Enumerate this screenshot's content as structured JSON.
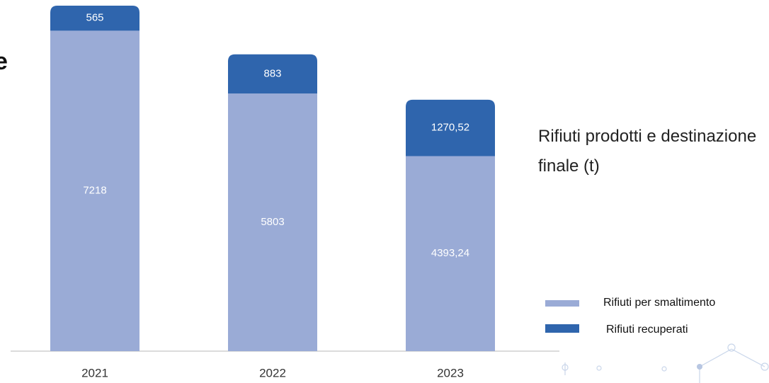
{
  "left_fragment": "e",
  "chart_data": {
    "type": "stacked_bar",
    "title": "Rifiuti prodotti e destinazione finale (t)",
    "categories": [
      "2021",
      "2022",
      "2023"
    ],
    "series": [
      {
        "name": "Rifiuti per smaltimento",
        "color": "#9aabd6",
        "values": [
          7218,
          5803,
          4393.24
        ],
        "value_labels": [
          "7218",
          "5803",
          "4393,24"
        ]
      },
      {
        "name": "Rifiuti recuperati",
        "color": "#2f65ad",
        "values": [
          565,
          883,
          1270.52
        ],
        "value_labels": [
          "565",
          "883",
          "1270,52"
        ]
      }
    ],
    "legend": "right"
  }
}
